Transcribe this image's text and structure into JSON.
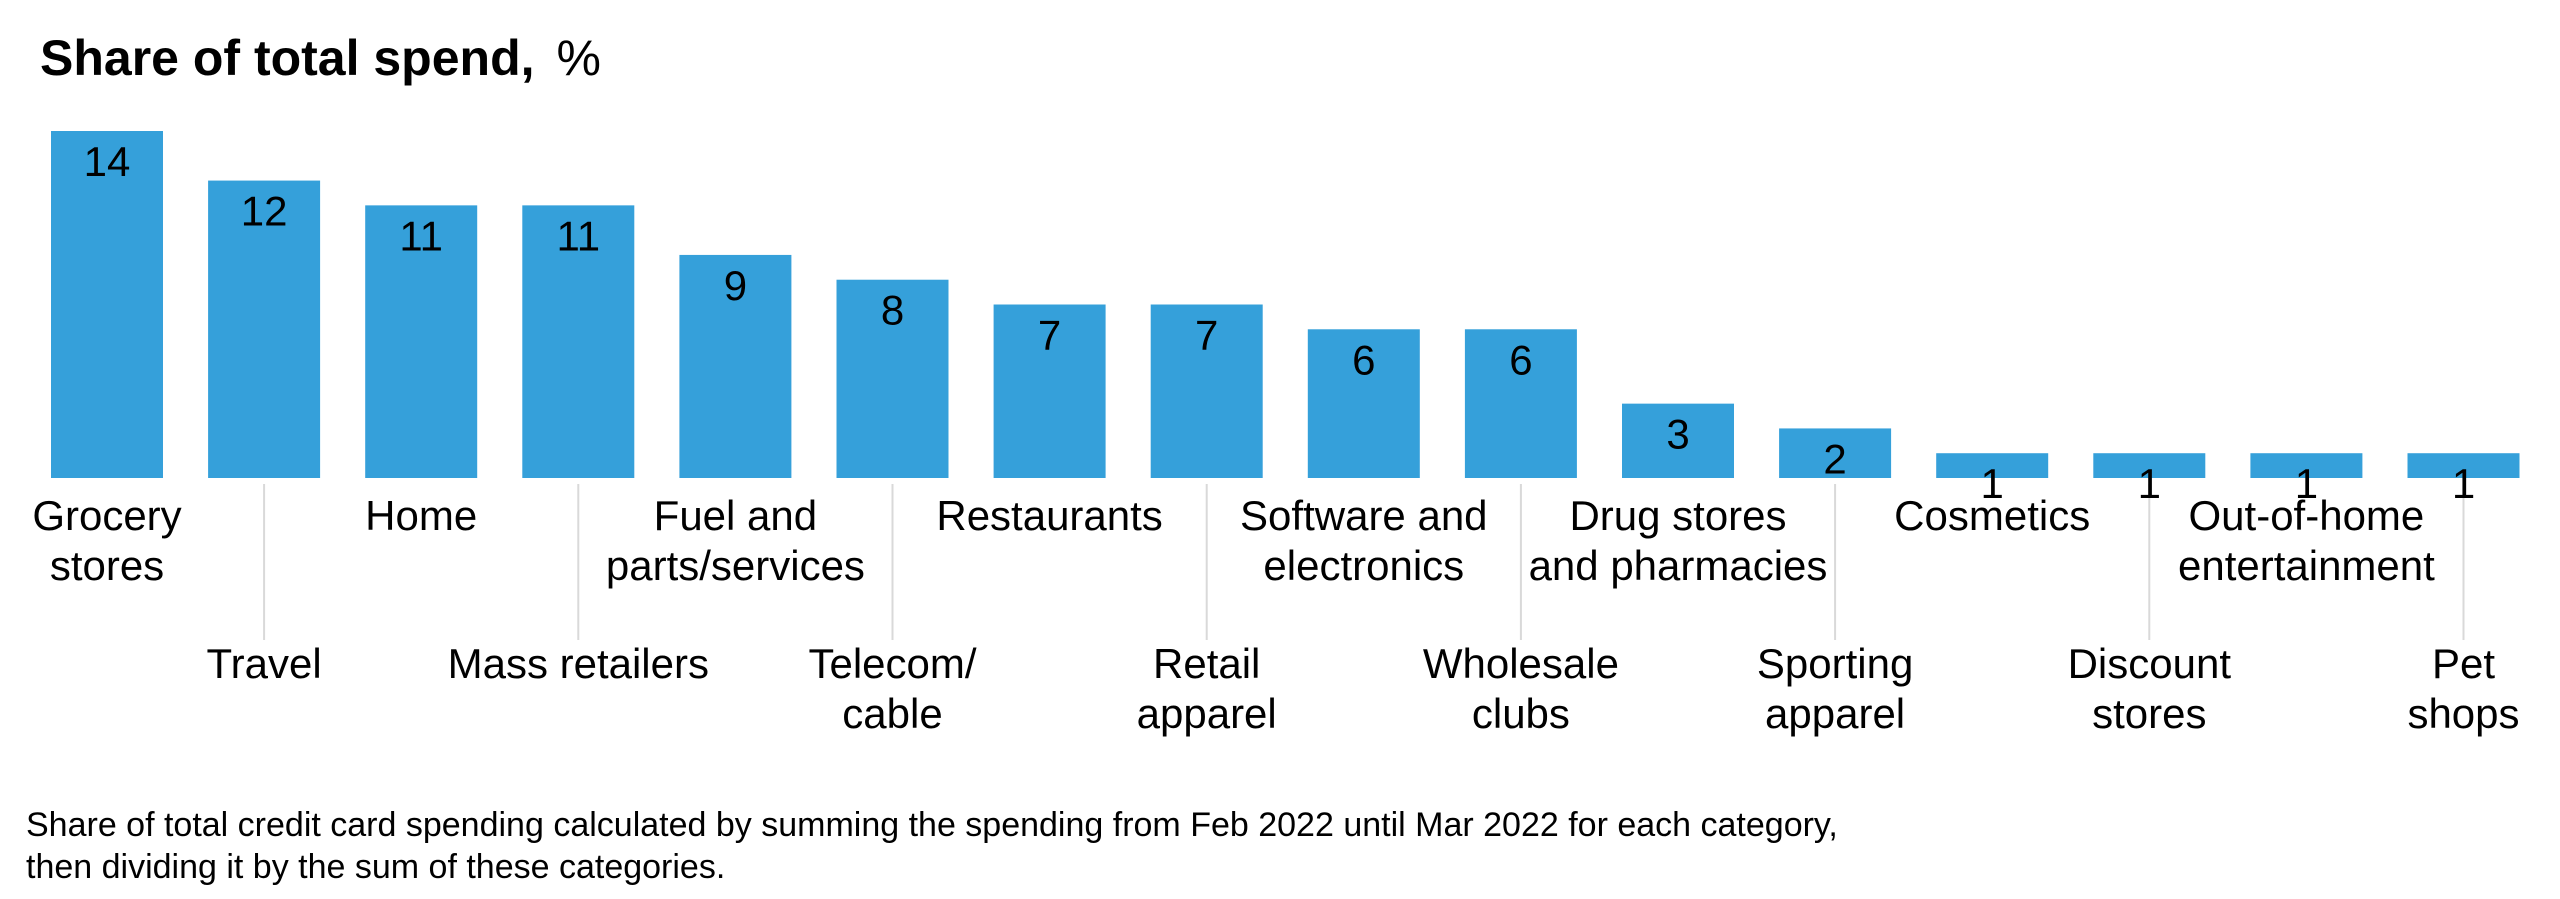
{
  "title": "Share of total spend,",
  "unit": "%",
  "footnote": [
    "Share of total credit card spending calculated by summing the spending from Feb 2022 until Mar 2022 for each category,",
    "then dividing it by the sum of these categories."
  ],
  "colors": {
    "bar": "#35a0da",
    "leader": "#d9d9d9"
  },
  "chart_data": {
    "type": "bar",
    "title": "Share of total spend, %",
    "ylabel": "",
    "xlabel": "",
    "ylim": [
      0,
      14
    ],
    "grid": false,
    "legend": "none",
    "categories": [
      [
        "Grocery",
        "stores"
      ],
      [
        "Travel"
      ],
      [
        "Home"
      ],
      [
        "Mass retailers"
      ],
      [
        "Fuel and",
        "parts/services"
      ],
      [
        "Telecom/",
        "cable"
      ],
      [
        "Restaurants"
      ],
      [
        "Retail",
        "apparel"
      ],
      [
        "Software and",
        "electronics"
      ],
      [
        "Wholesale",
        "clubs"
      ],
      [
        "Drug stores",
        "and pharmacies"
      ],
      [
        "Sporting",
        "apparel"
      ],
      [
        "Cosmetics"
      ],
      [
        "Discount",
        "stores"
      ],
      [
        "Out-of-home",
        "entertainment"
      ],
      [
        "Pet",
        "shops"
      ]
    ],
    "values": [
      14,
      12,
      11,
      11,
      9,
      8,
      7,
      7,
      6,
      6,
      3,
      2,
      1,
      1,
      1,
      1
    ]
  }
}
